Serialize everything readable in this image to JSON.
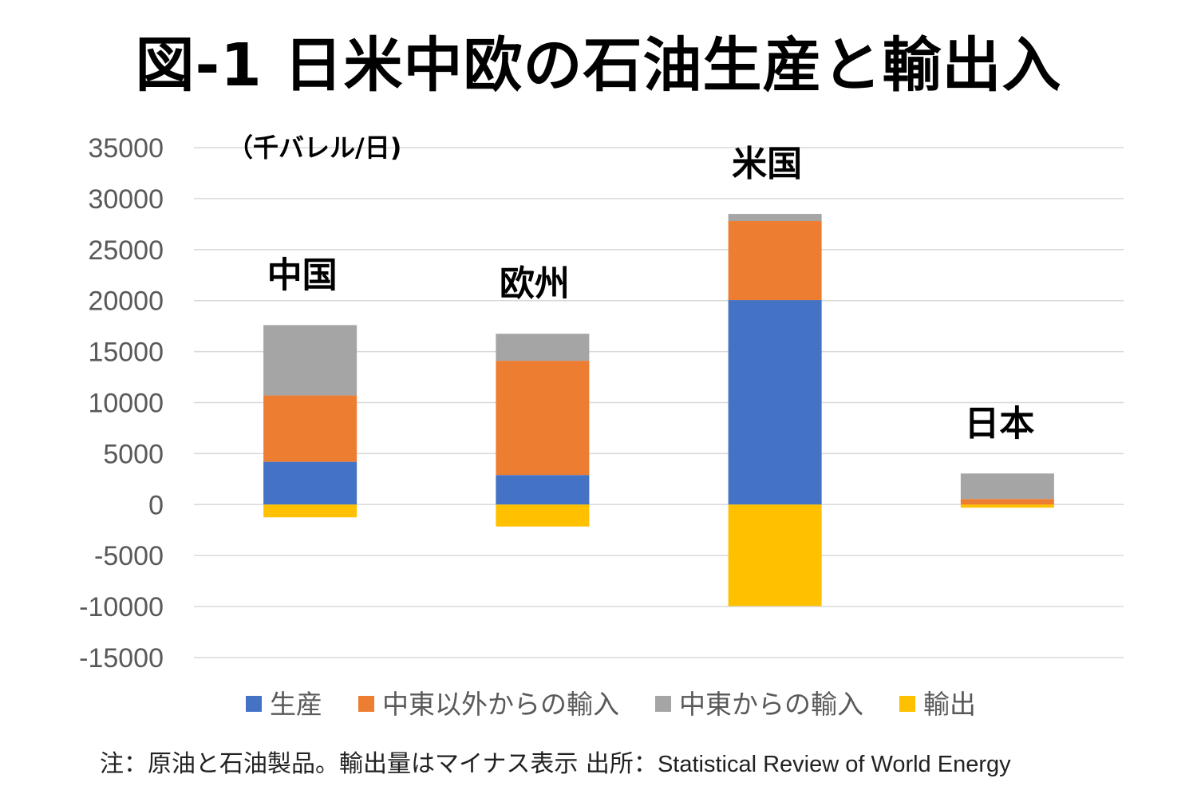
{
  "title": "図-1 日米中欧の石油生産と輸出入",
  "note": "注：原油と石油製品。輸出量はマイナス表示  出所：",
  "source": "Statistical Review of World Energy",
  "chart_data": {
    "type": "bar",
    "stacked": true,
    "title": "図-1 日米中欧の石油生産と輸出入",
    "unit_label": "（千バレル/日)",
    "categories": [
      "中国",
      "欧州",
      "米国",
      "日本"
    ],
    "series": [
      {
        "name": "生産",
        "color": "#4472C4",
        "values": [
          4200,
          2900,
          20050,
          0
        ]
      },
      {
        "name": "中東以外からの輸入",
        "color": "#ED7D31",
        "values": [
          6500,
          11200,
          7750,
          550
        ]
      },
      {
        "name": "中東からの輸入",
        "color": "#A5A5A5",
        "values": [
          6900,
          2650,
          700,
          2500
        ]
      },
      {
        "name": "輸出",
        "color": "#FFC000",
        "values": [
          -1250,
          -2150,
          -9950,
          -300
        ]
      }
    ],
    "ylim": [
      -15000,
      35000
    ],
    "yticks": [
      35000,
      30000,
      25000,
      20000,
      15000,
      10000,
      5000,
      0,
      -5000,
      -10000,
      -15000
    ],
    "grid": true,
    "legend": "bottom"
  }
}
